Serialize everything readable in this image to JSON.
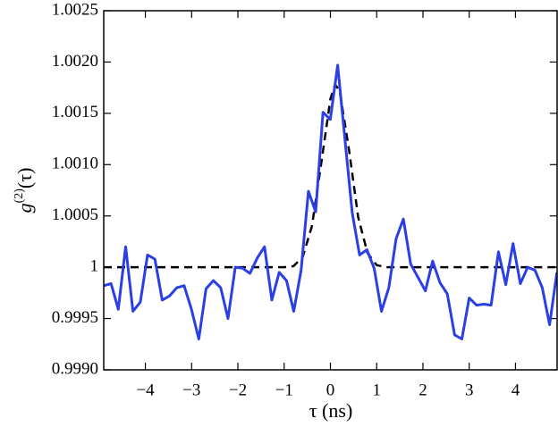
{
  "chart_data": {
    "type": "line",
    "x_label": "τ (ns)",
    "y_label": {
      "base": "g",
      "sup": "(2)",
      "arg": "(τ)"
    },
    "xlim": [
      -4.9,
      4.9
    ],
    "ylim": [
      0.999,
      1.0025
    ],
    "xticks": [
      {
        "value": -4,
        "label": "−4"
      },
      {
        "value": -3,
        "label": "−3"
      },
      {
        "value": -2,
        "label": "−2"
      },
      {
        "value": -1,
        "label": "−1"
      },
      0,
      1,
      2,
      3,
      4
    ],
    "yticks": [
      {
        "value": 0.999,
        "label": "0.9990"
      },
      0.9995,
      1,
      1.0005,
      {
        "value": 1.001,
        "label": "1.0010"
      },
      1.0015,
      {
        "value": 1.002,
        "label": "1.0020"
      },
      1.0025
    ],
    "series": [
      {
        "color": "#2b3fe6",
        "dashed": false,
        "width": 3,
        "x": [
          -4.9,
          -4.742,
          -4.584,
          -4.426,
          -4.268,
          -4.11,
          -3.952,
          -3.794,
          -3.636,
          -3.478,
          -3.32,
          -3.162,
          -3.004,
          -2.846,
          -2.688,
          -2.53,
          -2.372,
          -2.214,
          -2.056,
          -1.898,
          -1.74,
          -1.582,
          -1.424,
          -1.266,
          -1.108,
          -0.95,
          -0.792,
          -0.634,
          -0.476,
          -0.318,
          -0.16,
          -0.002,
          0.156,
          0.314,
          0.472,
          0.63,
          0.788,
          0.946,
          1.104,
          1.262,
          1.42,
          1.578,
          1.736,
          1.894,
          2.052,
          2.21,
          2.368,
          2.526,
          2.684,
          2.842,
          3.0,
          3.158,
          3.316,
          3.474,
          3.632,
          3.79,
          3.948,
          4.106,
          4.264,
          4.422,
          4.58,
          4.738,
          4.896
        ],
        "values": [
          0.99982,
          0.99984,
          0.99959,
          1.0002,
          0.99957,
          0.99966,
          1.00012,
          1.00008,
          0.99968,
          0.99972,
          0.9998,
          0.99982,
          0.99959,
          0.9993,
          0.99979,
          0.99987,
          0.9998,
          0.9995,
          1.0,
          0.99999,
          0.99994,
          1.00009,
          1.0002,
          0.99968,
          0.99995,
          0.99987,
          0.99957,
          0.99997,
          1.00074,
          1.00054,
          1.00151,
          1.00144,
          1.00197,
          1.00125,
          1.00053,
          1.00012,
          1.00017,
          0.99999,
          0.99957,
          0.9998,
          1.00028,
          1.00047,
          1.00003,
          0.9999,
          0.99977,
          1.00006,
          0.99985,
          0.99974,
          0.99934,
          0.9993,
          0.9997,
          0.99963,
          0.99964,
          0.99963,
          1.00015,
          0.99983,
          1.00023,
          0.99984,
          1.0,
          0.99997,
          0.9998,
          0.99944,
          0.99995
        ]
      },
      {
        "color": "#000000",
        "dashed": true,
        "width": 2.5,
        "x": [
          -4.9,
          -1.2,
          -1.0,
          -0.8,
          -0.6,
          -0.4,
          -0.2,
          0,
          0.1,
          0.2,
          0.4,
          0.6,
          0.8,
          1.0,
          1.2,
          4.9
        ],
        "values": [
          1.0,
          1.0,
          1.0,
          1.00001,
          1.0001,
          1.0004,
          1.00101,
          1.00164,
          1.00178,
          1.00172,
          1.00115,
          1.00049,
          1.00014,
          1.00002,
          1.0,
          1.0
        ]
      }
    ]
  }
}
